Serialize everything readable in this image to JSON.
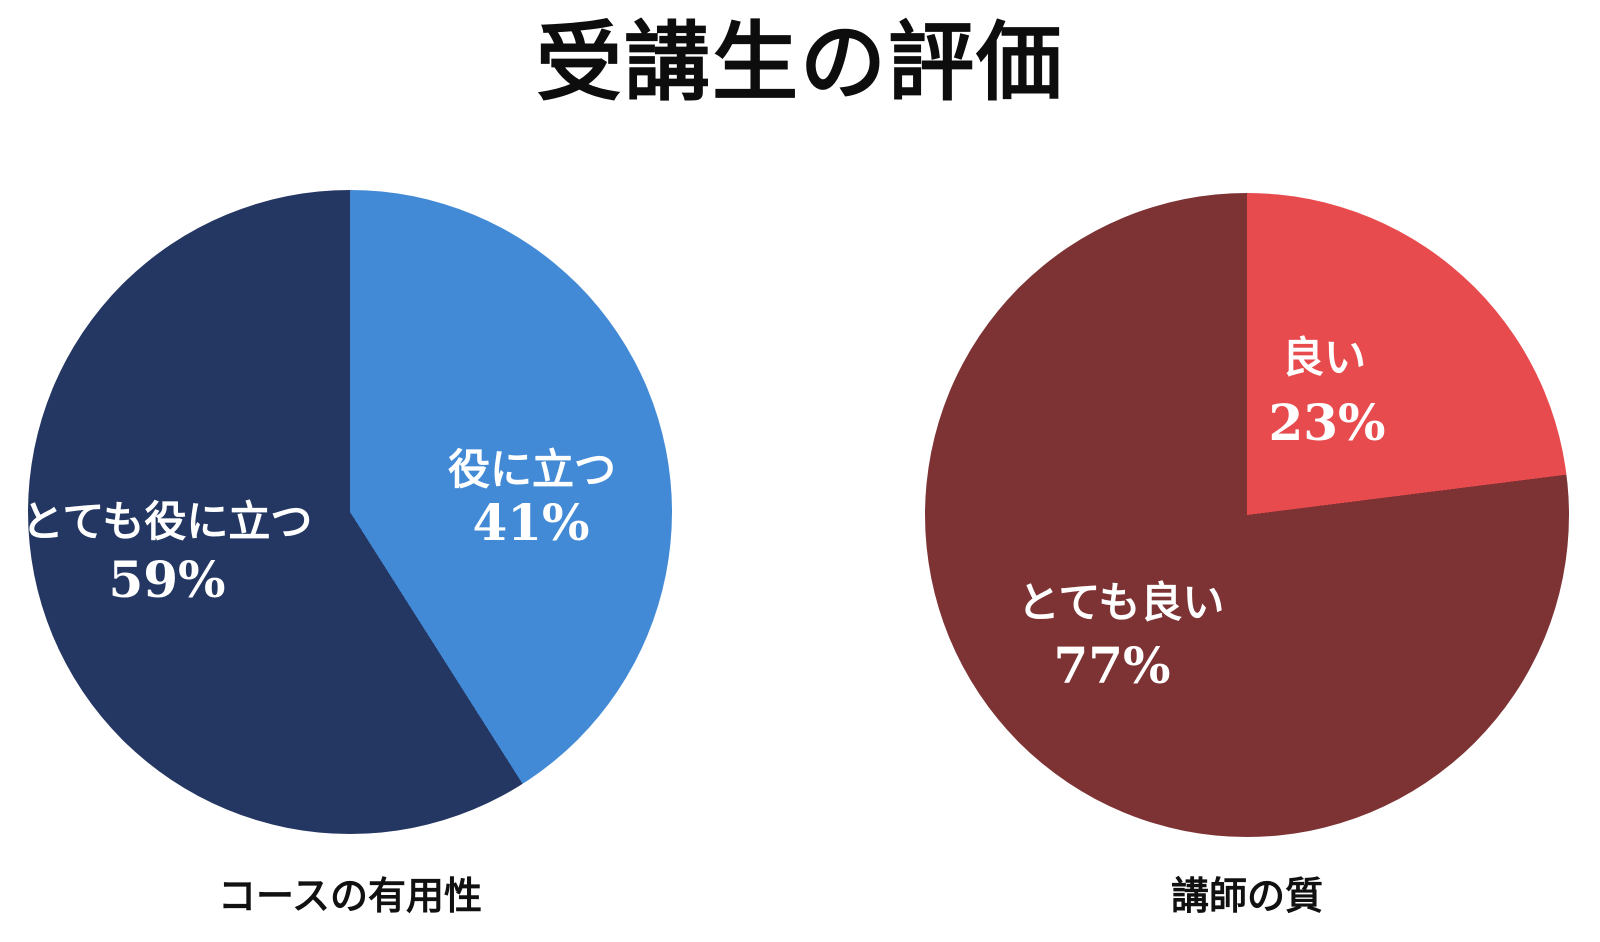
{
  "title": "受講生の評価",
  "colors": {
    "background": "#ffffff",
    "title_text": "#0d0d0d",
    "slice_label_text": "#ffffff",
    "blue": "#428ad6",
    "navy": "#243763",
    "red": "#e84b4e",
    "maroon": "#7d3234"
  },
  "chart_data": [
    {
      "type": "pie",
      "caption": "コースの有用性",
      "start_angle_deg": 0,
      "direction": "clockwise",
      "labels_inside": true,
      "slices": [
        {
          "label": "役に立つ",
          "value": 41,
          "percent_label": "41%",
          "color": "#428ad6"
        },
        {
          "label": "とても役に立つ",
          "value": 59,
          "percent_label": "59%",
          "color": "#243763"
        }
      ]
    },
    {
      "type": "pie",
      "caption": "講師の質",
      "start_angle_deg": 0,
      "direction": "clockwise",
      "labels_inside": true,
      "slices": [
        {
          "label": "良い",
          "value": 23,
          "percent_label": "23%",
          "color": "#e84b4e"
        },
        {
          "label": "とても良い",
          "value": 77,
          "percent_label": "77%",
          "color": "#7d3234"
        }
      ]
    }
  ]
}
